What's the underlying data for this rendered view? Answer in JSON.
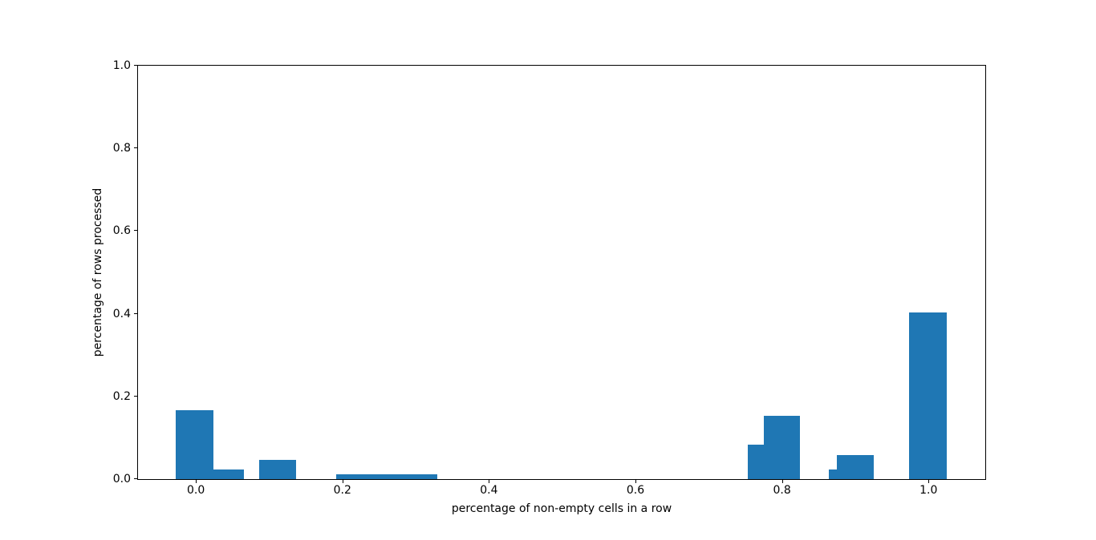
{
  "chart_data": {
    "type": "bar",
    "title": "",
    "xlabel": "percentage of non-empty cells in a row",
    "ylabel": "percentage of rows processed",
    "xlim": [
      -0.079,
      1.0775
    ],
    "ylim": [
      0,
      1.0
    ],
    "grid": false,
    "legend": null,
    "bar_color": "#1f77b4",
    "xticks": [
      {
        "value": 0.0,
        "label": "0.0"
      },
      {
        "value": 0.2,
        "label": "0.2"
      },
      {
        "value": 0.4,
        "label": "0.4"
      },
      {
        "value": 0.6,
        "label": "0.6"
      },
      {
        "value": 0.8,
        "label": "0.8"
      },
      {
        "value": 1.0,
        "label": "1.0"
      }
    ],
    "yticks": [
      {
        "value": 0.0,
        "label": "0.0"
      },
      {
        "value": 0.2,
        "label": "0.2"
      },
      {
        "value": 0.4,
        "label": "0.4"
      },
      {
        "value": 0.6,
        "label": "0.6"
      },
      {
        "value": 0.8,
        "label": "0.8"
      },
      {
        "value": 1.0,
        "label": "1.0"
      }
    ],
    "bars": [
      {
        "x_start": -0.027,
        "x_end": 0.024,
        "height": 0.167
      },
      {
        "x_start": 0.024,
        "x_end": 0.066,
        "height": 0.024
      },
      {
        "x_start": 0.086,
        "x_end": 0.137,
        "height": 0.047
      },
      {
        "x_start": 0.191,
        "x_end": 0.329,
        "height": 0.012
      },
      {
        "x_start": 0.753,
        "x_end": 0.775,
        "height": 0.083
      },
      {
        "x_start": 0.775,
        "x_end": 0.824,
        "height": 0.153
      },
      {
        "x_start": 0.864,
        "x_end": 0.875,
        "height": 0.023
      },
      {
        "x_start": 0.875,
        "x_end": 0.925,
        "height": 0.058
      },
      {
        "x_start": 0.974,
        "x_end": 1.025,
        "height": 0.404
      }
    ]
  }
}
